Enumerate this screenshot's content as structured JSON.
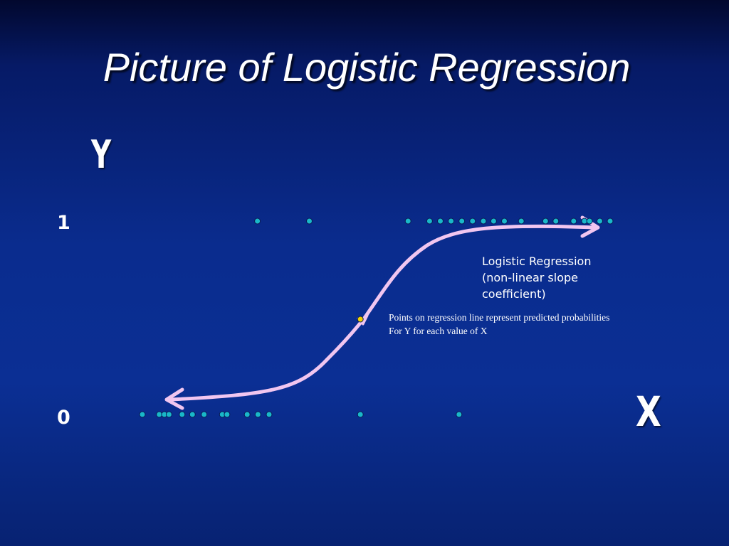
{
  "slide": {
    "title": "Picture of Logistic Regression"
  },
  "diagram": {
    "y_axis_letter": "Y",
    "x_axis_letter": "X",
    "tick_one": "1",
    "tick_zero": "0",
    "curve_label": [
      "Logistic Regression",
      "(non-linear slope",
      "coefficient)"
    ],
    "points_note": [
      "Points on regression line represent predicted probabilities",
      "For Y for each value of  X"
    ],
    "colors": {
      "curve": "#f1c6f0",
      "points": "#19b8c9",
      "highlight_point": "#f0d000",
      "axes": "#ffffff"
    },
    "observations_y1_x": [
      0.246,
      0.357,
      0.568,
      0.614,
      0.637,
      0.66,
      0.683,
      0.706,
      0.729,
      0.751,
      0.774,
      0.81,
      0.862,
      0.884,
      0.922,
      0.945,
      0.956,
      0.978,
      1.0
    ],
    "observations_y0_x": [
      0.0,
      0.036,
      0.047,
      0.057,
      0.085,
      0.107,
      0.132,
      0.171,
      0.181,
      0.224,
      0.247,
      0.271,
      0.466,
      0.677
    ],
    "predicted_point_x": 0.466
  }
}
